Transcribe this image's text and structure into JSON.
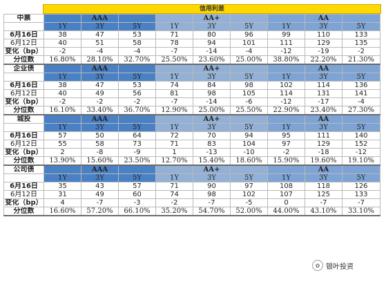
{
  "header": {
    "title": "信用利差"
  },
  "colors": {
    "title_bg": "#ffd800",
    "aaa_header": "#4a80c4",
    "aa_plus_header": "#93b1d6",
    "aa_header": "#7ea4d5"
  },
  "ratings": [
    "AAA",
    "AA+",
    "AA"
  ],
  "tenors": [
    "1Y",
    "3Y",
    "5Y"
  ],
  "sections": [
    {
      "name": "中票",
      "rows": [
        {
          "label": "6月16日",
          "values": [
            "38",
            "47",
            "53",
            "71",
            "80",
            "96",
            "99",
            "110",
            "133"
          ]
        },
        {
          "label": "6月12日",
          "values": [
            "40",
            "51",
            "58",
            "78",
            "94",
            "101",
            "111",
            "129",
            "135"
          ]
        },
        {
          "label": "变化（bp）",
          "values": [
            "-2",
            "-4",
            "-4",
            "-7",
            "-14",
            "-4",
            "-12",
            "-19",
            "-2"
          ]
        },
        {
          "label": "分位数",
          "values": [
            "16.80%",
            "28.10%",
            "32.70%",
            "25.50%",
            "23.60%",
            "25.00%",
            "38.80%",
            "22.20%",
            "21.30%"
          ]
        }
      ]
    },
    {
      "name": "企业债",
      "rows": [
        {
          "label": "6月16日",
          "values": [
            "38",
            "47",
            "53",
            "74",
            "84",
            "98",
            "102",
            "114",
            "136"
          ]
        },
        {
          "label": "6月12日",
          "values": [
            "40",
            "49",
            "56",
            "81",
            "98",
            "105",
            "114",
            "131",
            "141"
          ]
        },
        {
          "label": "变化（bp）",
          "values": [
            "-2",
            "-2",
            "-2",
            "-7",
            "-14",
            "-6",
            "-12",
            "-17",
            "-4"
          ]
        },
        {
          "label": "分位数",
          "values": [
            "16.10%",
            "33.40%",
            "36.70%",
            "12.90%",
            "25.00%",
            "25.50%",
            "22.90%",
            "23.40%",
            "27.30%"
          ]
        }
      ]
    },
    {
      "name": "城投",
      "rows": [
        {
          "label": "6月16日",
          "values": [
            "57",
            "50",
            "64",
            "72",
            "70",
            "94",
            "95",
            "111",
            "140"
          ]
        },
        {
          "label": "6月12日",
          "values": [
            "55",
            "58",
            "73",
            "71",
            "83",
            "104",
            "97",
            "129",
            "152"
          ]
        },
        {
          "label": "变化（bp）",
          "values": [
            "2",
            "-8",
            "-9",
            "1",
            "-13",
            "-10",
            "-2",
            "-18",
            "-12"
          ]
        },
        {
          "label": "分位数",
          "values": [
            "13.90%",
            "15.60%",
            "23.50%",
            "12.70%",
            "15.40%",
            "18.60%",
            "15.90%",
            "19.60%",
            "19.10%"
          ]
        }
      ]
    },
    {
      "name": "公司债",
      "rows": [
        {
          "label": "6月16日",
          "values": [
            "35",
            "43",
            "57",
            "71",
            "90",
            "97",
            "108",
            "118",
            "126"
          ]
        },
        {
          "label": "6月12日",
          "values": [
            "31",
            "49",
            "60",
            "74",
            "98",
            "102",
            "107",
            "125",
            "133"
          ]
        },
        {
          "label": "变化（bp）",
          "values": [
            "4",
            "-7",
            "-3",
            "-2",
            "-7",
            "-5",
            "0",
            "-7",
            "-7"
          ]
        },
        {
          "label": "分位数",
          "values": [
            "16.60%",
            "57.20%",
            "66.10%",
            "35.20%",
            "54.70%",
            "52.00%",
            "44.00%",
            "43.10%",
            "33.10%"
          ]
        }
      ]
    }
  ],
  "watermark": {
    "text": "银叶投资",
    "icon": "wechat-icon"
  }
}
